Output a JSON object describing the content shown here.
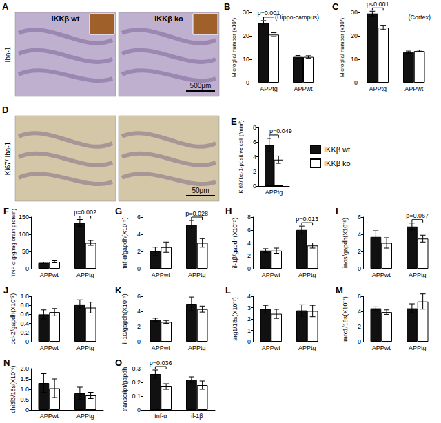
{
  "image_panels": [
    {
      "title": "A",
      "row_label": "Iba-1",
      "columns": [
        "IKKβ wt",
        "IKKβ ko"
      ],
      "scale_bar": "500μm"
    },
    {
      "title": "D",
      "row_label": "Ki67/ Iba-1",
      "scale_bar": "50μm"
    }
  ],
  "chart_data": [
    {
      "type": "bar",
      "title": "B",
      "ylabel": "Microglial number (x10³)",
      "categories": [
        "APPtg",
        "APPwt"
      ],
      "series": [
        {
          "name": "IKKβ wt",
          "color": "#111111",
          "values": [
            25.5,
            11
          ],
          "errors": [
            1,
            0.6
          ]
        },
        {
          "name": "IKKβ ko",
          "color": "#ffffff",
          "values": [
            20.5,
            11
          ],
          "errors": [
            0.8,
            0.5
          ]
        }
      ],
      "ylim": [
        0,
        30
      ],
      "yticks": [
        0,
        10,
        20,
        30
      ],
      "grid": false,
      "annotations": [
        {
          "text": "p=0.001",
          "category": "APPtg"
        },
        {
          "text": "(Hippo-campus)"
        }
      ]
    },
    {
      "type": "bar",
      "title": "C",
      "ylabel": "Microglial number (x10³)",
      "categories": [
        "APPtg",
        "APPwt"
      ],
      "series": [
        {
          "name": "IKKβ wt",
          "color": "#111111",
          "values": [
            29.5,
            13
          ],
          "errors": [
            1,
            0.5
          ]
        },
        {
          "name": "IKKβ ko",
          "color": "#ffffff",
          "values": [
            23.5,
            13.5
          ],
          "errors": [
            0.8,
            0.4
          ]
        }
      ],
      "ylim": [
        0,
        30
      ],
      "yticks": [
        0,
        10,
        20,
        30
      ],
      "grid": false,
      "annotations": [
        {
          "text": "p<0.001",
          "category": "APPtg"
        },
        {
          "text": "(Cortex)"
        }
      ]
    },
    {
      "type": "bar",
      "title": "E",
      "ylabel": "Ki67/Iba-1-positive cell (/mm²)",
      "categories": [
        "APPtg"
      ],
      "series": [
        {
          "name": "IKKβ wt",
          "color": "#111111",
          "values": [
            5.6
          ],
          "errors": [
            0.9
          ]
        },
        {
          "name": "IKKβ ko",
          "color": "#ffffff",
          "values": [
            3.6
          ],
          "errors": [
            0.5
          ]
        }
      ],
      "ylim": [
        0,
        8
      ],
      "yticks": [
        0,
        2,
        4,
        6,
        8
      ],
      "grid": false,
      "legend": "right",
      "annotations": [
        {
          "text": "p=0.049",
          "category": "APPtg"
        }
      ]
    },
    {
      "type": "bar",
      "title": "F",
      "ylabel": "TNF-α (pg/mg brain protein)",
      "categories": [
        "APPwt",
        "APPtg"
      ],
      "series": [
        {
          "name": "IKKβ wt",
          "color": "#111111",
          "values": [
            17,
            133
          ],
          "errors": [
            2,
            10
          ]
        },
        {
          "name": "IKKβ ko",
          "color": "#ffffff",
          "values": [
            20,
            75
          ],
          "errors": [
            3,
            7
          ]
        }
      ],
      "ylim": [
        0,
        150
      ],
      "yticks": [
        0,
        50,
        100,
        150
      ],
      "grid": false,
      "annotations": [
        {
          "text": "p=0.002",
          "category": "APPtg"
        }
      ]
    },
    {
      "type": "bar",
      "title": "G",
      "ylabel": "tnf-α/gapdh(X10⁻⁵)",
      "categories": [
        "APPwt",
        "APPtg"
      ],
      "series": [
        {
          "name": "IKKβ wt",
          "color": "#111111",
          "values": [
            2.0,
            5.1
          ],
          "errors": [
            0.5,
            0.5
          ]
        },
        {
          "name": "IKKβ ko",
          "color": "#ffffff",
          "values": [
            2.5,
            3.0
          ],
          "errors": [
            0.6,
            0.5
          ]
        }
      ],
      "ylim": [
        0,
        6
      ],
      "yticks": [
        0,
        2,
        4,
        6
      ],
      "grid": false,
      "annotations": [
        {
          "text": "p=0.028",
          "category": "APPtg"
        }
      ]
    },
    {
      "type": "bar",
      "title": "H",
      "ylabel": "il-1β/gapdh(X10⁻⁵)",
      "categories": [
        "APPwt",
        "APPtg"
      ],
      "series": [
        {
          "name": "IKKβ wt",
          "color": "#111111",
          "values": [
            2.8,
            6.0
          ],
          "errors": [
            0.3,
            0.6
          ]
        },
        {
          "name": "IKKβ ko",
          "color": "#ffffff",
          "values": [
            2.8,
            3.6
          ],
          "errors": [
            0.4,
            0.4
          ]
        }
      ],
      "ylim": [
        0,
        8
      ],
      "yticks": [
        0,
        2,
        4,
        6,
        8
      ],
      "grid": false,
      "annotations": [
        {
          "text": "p=0.013",
          "category": "APPtg"
        }
      ]
    },
    {
      "type": "bar",
      "title": "I",
      "ylabel": "inos/gapdh(X10⁻⁵)",
      "categories": [
        "APPwt",
        "APPtg"
      ],
      "series": [
        {
          "name": "IKKβ wt",
          "color": "#111111",
          "values": [
            3.7,
            4.9
          ],
          "errors": [
            0.7,
            0.4
          ]
        },
        {
          "name": "IKKβ ko",
          "color": "#ffffff",
          "values": [
            3.0,
            3.5
          ],
          "errors": [
            0.6,
            0.4
          ]
        }
      ],
      "ylim": [
        0,
        6
      ],
      "yticks": [
        0,
        2,
        4,
        6
      ],
      "grid": false,
      "annotations": [
        {
          "text": "p=0.067",
          "category": "APPtg"
        }
      ]
    },
    {
      "type": "bar",
      "title": "J",
      "ylabel": "ccl-2/gapdh(X10⁻²)",
      "categories": [
        "APPwt",
        "APPtg"
      ],
      "series": [
        {
          "name": "IKKβ wt",
          "color": "#111111",
          "values": [
            0.6,
            0.82
          ],
          "errors": [
            0.1,
            0.1
          ]
        },
        {
          "name": "IKKβ ko",
          "color": "#ffffff",
          "values": [
            0.65,
            0.75
          ],
          "errors": [
            0.08,
            0.12
          ]
        }
      ],
      "ylim": [
        0,
        1
      ],
      "yticks": [
        0,
        0.2,
        0.4,
        0.6,
        0.8,
        {
          "value": 1,
          "label": "1.0"
        }
      ],
      "grid": false
    },
    {
      "type": "bar",
      "title": "K",
      "ylabel": "il-10/gapdh(X10⁻⁵)",
      "categories": [
        "APPwt",
        "APPtg"
      ],
      "series": [
        {
          "name": "IKKβ wt",
          "color": "#111111",
          "values": [
            2.9,
            5.0
          ],
          "errors": [
            0.2,
            0.9
          ]
        },
        {
          "name": "IKKβ ko",
          "color": "#ffffff",
          "values": [
            2.6,
            4.3
          ],
          "errors": [
            0.2,
            0.4
          ]
        }
      ],
      "ylim": [
        0,
        6
      ],
      "yticks": [
        0,
        2,
        4,
        6
      ],
      "grid": false
    },
    {
      "type": "bar",
      "title": "L",
      "ylabel": "arg1/18s(X10⁻⁷)",
      "categories": [
        "APPwt",
        "APPtg"
      ],
      "series": [
        {
          "name": "IKKβ wt",
          "color": "#111111",
          "values": [
            2.85,
            2.75
          ],
          "errors": [
            0.35,
            0.5
          ]
        },
        {
          "name": "IKKβ ko",
          "color": "#ffffff",
          "values": [
            2.45,
            2.7
          ],
          "errors": [
            0.4,
            0.5
          ]
        }
      ],
      "ylim": [
        0,
        4
      ],
      "yticks": [
        0,
        1,
        2,
        3,
        4
      ],
      "grid": false
    },
    {
      "type": "bar",
      "title": "M",
      "ylabel": "mrc1/18s(X10⁻⁷)",
      "categories": [
        "APPwt",
        "APPtg"
      ],
      "series": [
        {
          "name": "IKKβ wt",
          "color": "#111111",
          "values": [
            4.4,
            4.4
          ],
          "errors": [
            0.2,
            0.6
          ]
        },
        {
          "name": "IKKβ ko",
          "color": "#ffffff",
          "values": [
            3.9,
            5.3
          ],
          "errors": [
            0.3,
            1.0
          ]
        }
      ],
      "ylim": [
        0,
        6
      ],
      "yticks": [
        0,
        2,
        4,
        6
      ],
      "grid": false
    },
    {
      "type": "bar",
      "title": "N",
      "ylabel": "chi3l3/18s(X10⁻⁶)",
      "categories": [
        "APPwt",
        "APPtg"
      ],
      "series": [
        {
          "name": "IKKβ wt",
          "color": "#111111",
          "values": [
            1.3,
            0.8
          ],
          "errors": [
            0.45,
            0.3
          ]
        },
        {
          "name": "IKKβ ko",
          "color": "#ffffff",
          "values": [
            1.05,
            0.7
          ],
          "errors": [
            0.45,
            0.15
          ]
        }
      ],
      "ylim": [
        0,
        2
      ],
      "yticks": [
        0,
        0.5,
        {
          "value": 1,
          "label": "1.0"
        },
        1.5,
        {
          "value": 2,
          "label": "2.0"
        }
      ],
      "grid": false
    },
    {
      "type": "bar",
      "title": "O",
      "ylabel": "transcript/gapdh",
      "categories": [
        "tnf-α",
        "il-1β"
      ],
      "series": [
        {
          "name": "IKKβ wt",
          "color": "#111111",
          "values": [
            0.26,
            0.22
          ],
          "errors": [
            0.03,
            0.02
          ]
        },
        {
          "name": "IKKβ ko",
          "color": "#ffffff",
          "values": [
            0.17,
            0.18
          ],
          "errors": [
            0.02,
            0.03
          ]
        }
      ],
      "ylim": [
        0,
        0.3
      ],
      "yticks": [
        0,
        0.1,
        0.2,
        0.3
      ],
      "grid": false,
      "annotations": [
        {
          "text": "p=0.036",
          "category": "tnf-α"
        }
      ]
    }
  ]
}
